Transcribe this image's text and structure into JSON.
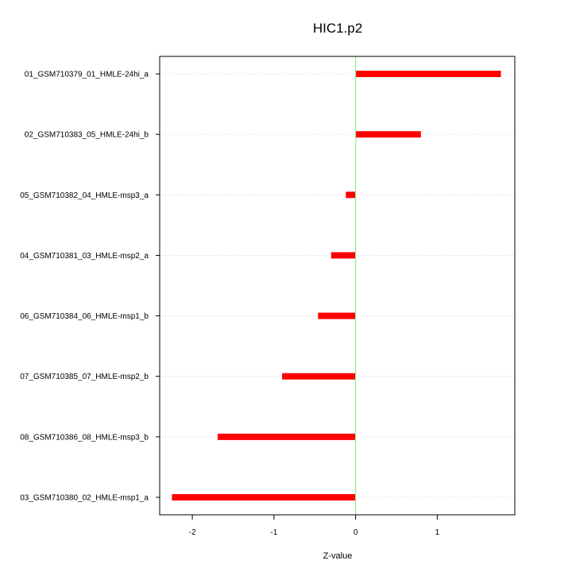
{
  "chart_data": {
    "type": "bar",
    "orientation": "horizontal",
    "title": "HIC1.p2",
    "xlabel": "Z-value",
    "ylabel": "",
    "xlim": [
      -2.4,
      1.95
    ],
    "x_ticks": [
      -2,
      -1,
      0,
      1
    ],
    "x_tick_labels": [
      "-2",
      "-1",
      "0",
      "1"
    ],
    "reference_line": 0,
    "categories": [
      "01_GSM710379_01_HMLE-24hi_a",
      "02_GSM710383_05_HMLE-24hi_b",
      "05_GSM710382_04_HMLE-msp3_a",
      "04_GSM710381_03_HMLE-msp2_a",
      "06_GSM710384_06_HMLE-msp1_b",
      "07_GSM710385_07_HMLE-msp2_b",
      "08_GSM710386_08_HMLE-msp3_b",
      "03_GSM710380_02_HMLE-msp1_a"
    ],
    "values": [
      1.78,
      0.8,
      -0.12,
      -0.3,
      -0.46,
      -0.9,
      -1.69,
      -2.25
    ],
    "grid": "horizontal-dotted",
    "bar_color": "#ff0000",
    "reference_line_color": "#90ee90"
  }
}
